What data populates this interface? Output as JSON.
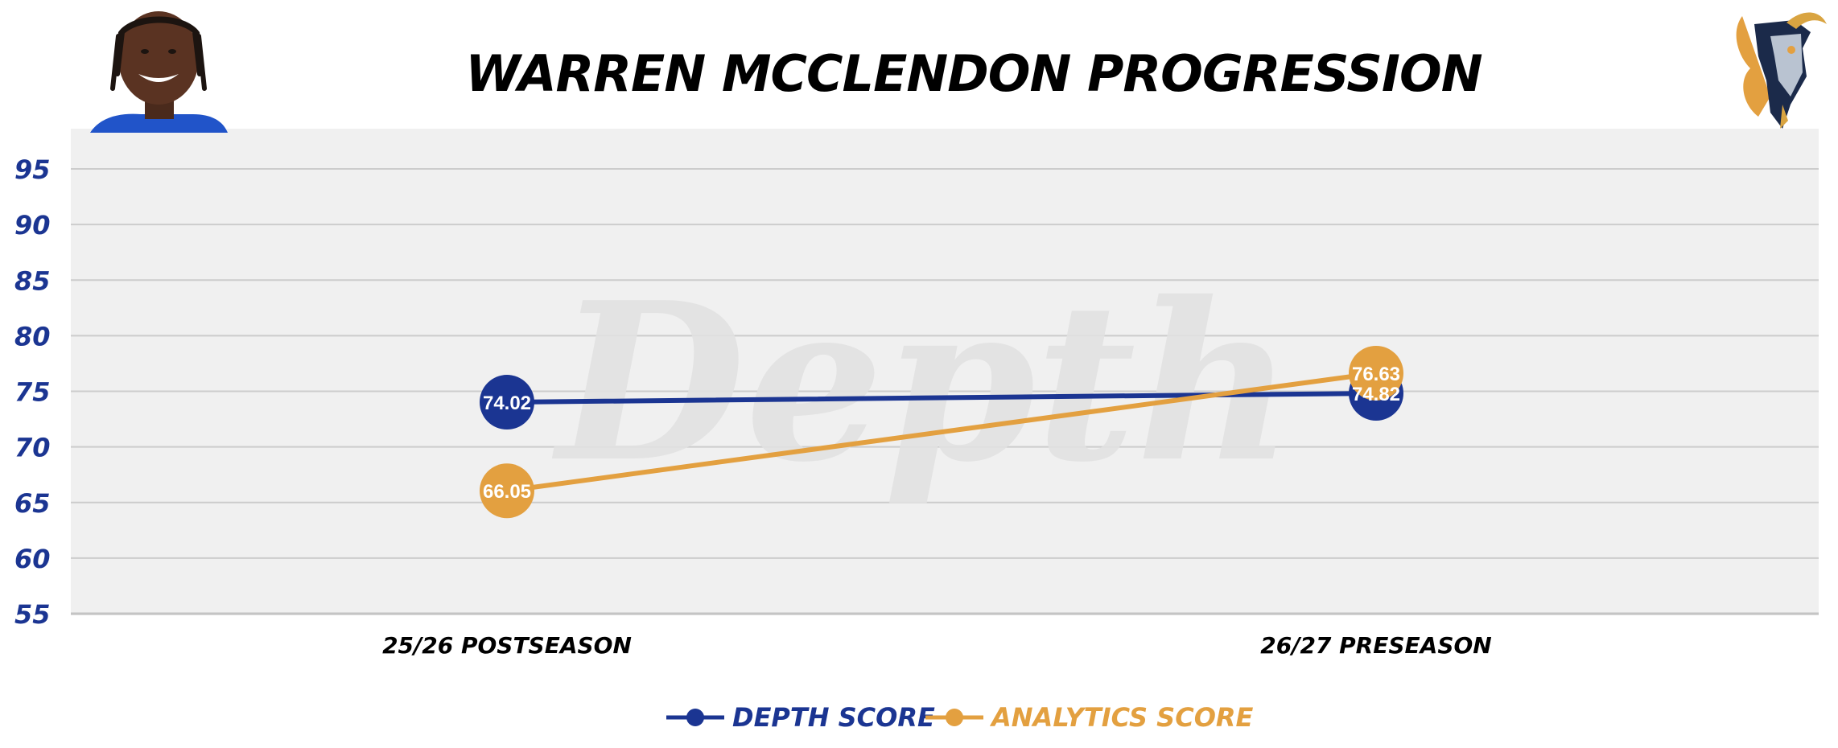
{
  "title": "WARREN MCCLENDON PROGRESSION",
  "colors": {
    "depth": "#1b3592",
    "analytics": "#e3a040",
    "plot_bg": "#f0f0f0",
    "grid": "#cccccc",
    "title": "#000000",
    "ytick": "#1b3592",
    "xtick": "#000000",
    "label_text": "#ffffff",
    "watermark": "#e2e2e2"
  },
  "watermark_text": "Depth",
  "icons": {
    "player_photo": "player-headshot",
    "team_logo": "goat-logo"
  },
  "chart_data": {
    "type": "line",
    "title": "WARREN MCCLENDON PROGRESSION",
    "categories": [
      "25/26 POSTSEASON",
      "26/27 PRESEASON"
    ],
    "ylim": [
      55,
      95
    ],
    "yticks": [
      55,
      60,
      65,
      70,
      75,
      80,
      85,
      90,
      95
    ],
    "grid": true,
    "legend_position": "bottom-center",
    "series": [
      {
        "name": "DEPTH SCORE",
        "values": [
          74.02,
          74.82
        ],
        "labels": [
          "74.02",
          "74.82"
        ],
        "color": "#1b3592"
      },
      {
        "name": "ANALYTICS SCORE",
        "values": [
          66.05,
          76.63
        ],
        "labels": [
          "66.05",
          "76.63"
        ],
        "color": "#e3a040"
      }
    ]
  }
}
